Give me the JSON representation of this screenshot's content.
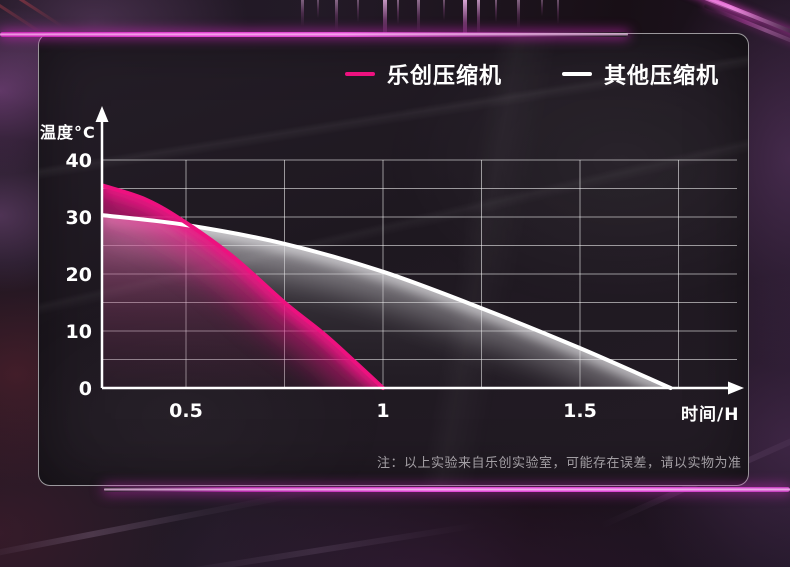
{
  "legend": {
    "item1": "乐创压缩机",
    "item2": "其他压缩机"
  },
  "chart_data": {
    "type": "line",
    "title": "",
    "x_axis": {
      "label": "时间/H",
      "min": 0.29,
      "max": 1.9,
      "tick_values": [
        0.5,
        1,
        1.5
      ],
      "tick_labels": [
        "0.5",
        "1",
        "1.5"
      ],
      "gridline_values": [
        0.5,
        0.75,
        1.0,
        1.25,
        1.5,
        1.75
      ]
    },
    "y_axis": {
      "label": "温度°C",
      "min": 0,
      "max": 40,
      "tick_values": [
        40,
        30,
        20,
        10,
        0
      ],
      "tick_labels": [
        "40",
        "30",
        "20",
        "10",
        "0"
      ],
      "gridline_step": 5
    },
    "legend_position": "top",
    "grid": true,
    "series": [
      {
        "name": "乐创压缩机",
        "color": "#ed117f",
        "points": [
          [
            0.29,
            35.5
          ],
          [
            0.4,
            33
          ],
          [
            0.5,
            29
          ],
          [
            0.62,
            23
          ],
          [
            0.75,
            15
          ],
          [
            0.85,
            9.5
          ],
          [
            0.93,
            4.5
          ],
          [
            1.0,
            0
          ]
        ]
      },
      {
        "name": "其他压缩机",
        "color": "#ffffff",
        "points": [
          [
            0.29,
            30.3
          ],
          [
            0.5,
            28.6
          ],
          [
            0.75,
            25.3
          ],
          [
            1.0,
            20.4
          ],
          [
            1.25,
            14
          ],
          [
            1.5,
            7
          ],
          [
            1.73,
            0
          ]
        ]
      }
    ],
    "note": "注：以上实验来自乐创实验室，可能存在误差，请以实物为准"
  }
}
